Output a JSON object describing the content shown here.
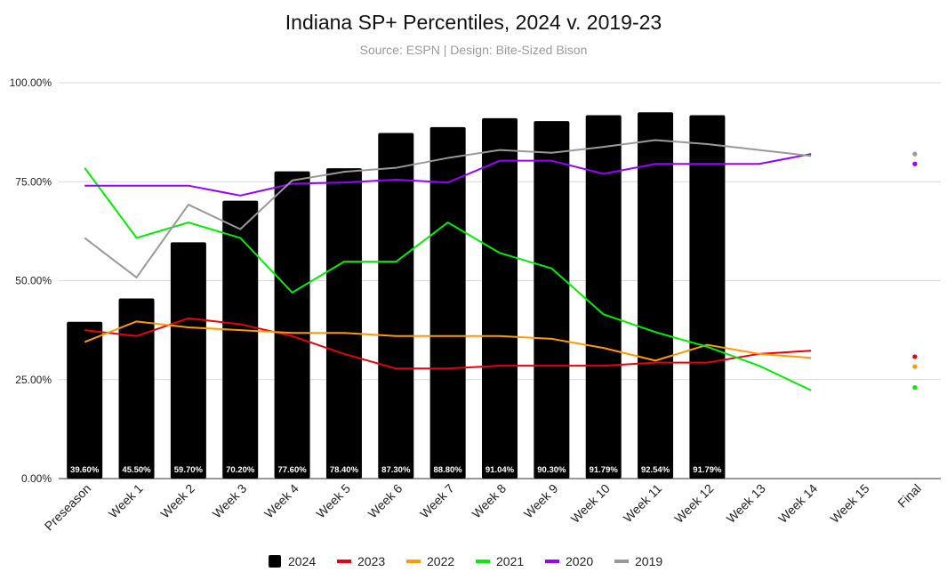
{
  "chart_data": {
    "type": "bar",
    "title": "Indiana SP+ Percentiles, 2024 v. 2019-23",
    "subtitle": "Source: ESPN | Design: Bite-Sized Bison",
    "categories": [
      "Preseason",
      "Week 1",
      "Week 2",
      "Week 3",
      "Week 4",
      "Week 5",
      "Week 6",
      "Week 7",
      "Week 8",
      "Week 9",
      "Week 10",
      "Week 11",
      "Week 12",
      "Week 13",
      "Week 14",
      "Week 15",
      "Final"
    ],
    "ylim": [
      0,
      100
    ],
    "yticks": [
      "0.00%",
      "25.00%",
      "50.00%",
      "75.00%",
      "100.00%"
    ],
    "grid": true,
    "legend_position": "bottom",
    "bar_series": {
      "name": "2024",
      "color": "#000000",
      "values": [
        39.6,
        45.5,
        59.7,
        70.2,
        77.6,
        78.4,
        87.3,
        88.8,
        91.04,
        90.3,
        91.79,
        92.54,
        91.79
      ],
      "labels": [
        "39.60%",
        "45.50%",
        "59.70%",
        "70.20%",
        "77.60%",
        "78.40%",
        "87.30%",
        "88.80%",
        "91.04%",
        "90.30%",
        "91.79%",
        "92.54%",
        "91.79%"
      ]
    },
    "line_series": [
      {
        "name": "2023",
        "color": "#e8000b",
        "values": [
          37.5,
          36.0,
          40.5,
          39.0,
          36.0,
          31.5,
          27.8,
          27.8,
          28.5,
          28.5,
          28.5,
          29.3,
          29.3,
          31.5,
          32.3
        ],
        "final": 30.8
      },
      {
        "name": "2022",
        "color": "#ff9900",
        "values": [
          34.5,
          39.7,
          38.2,
          37.5,
          36.8,
          36.8,
          36.0,
          36.0,
          36.0,
          35.3,
          33.0,
          29.8,
          33.8,
          31.5,
          30.5
        ],
        "final": 28.3
      },
      {
        "name": "2021",
        "color": "#00ee00",
        "values": [
          78.5,
          60.8,
          64.7,
          60.8,
          47.0,
          54.8,
          54.8,
          64.7,
          57.0,
          53.1,
          41.5,
          37.0,
          33.3,
          28.5,
          22.3
        ],
        "final": 23.0
      },
      {
        "name": "2020",
        "color": "#9900ff",
        "values": [
          74.0,
          74.0,
          74.0,
          71.5,
          74.5,
          74.8,
          75.5,
          74.8,
          80.3,
          80.3,
          77.0,
          79.5,
          79.5,
          79.5,
          82.0
        ],
        "final": 79.5
      },
      {
        "name": "2019",
        "color": "#999999",
        "values": [
          60.8,
          50.8,
          69.2,
          63.0,
          75.3,
          77.5,
          78.5,
          81.0,
          83.0,
          82.3,
          83.8,
          85.5,
          84.5,
          83.0,
          81.5
        ],
        "final": 82.0
      }
    ]
  }
}
